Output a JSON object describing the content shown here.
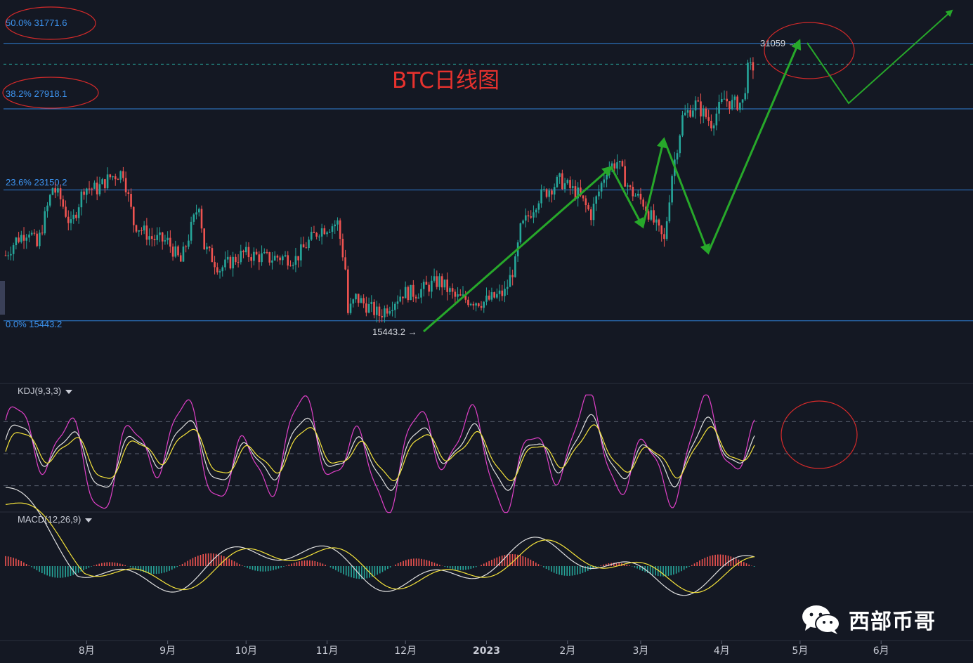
{
  "title": "BTC日线图",
  "watermark": "西部币哥",
  "indicators": {
    "kdj_label": "KDJ(9,3,3)",
    "macd_label": "MACD(12,26,9)"
  },
  "colors": {
    "background": "#141823",
    "up": "#26a69a",
    "down": "#ef5350",
    "fib_line": "#2f7fd6",
    "fib_text": "#3d94f0",
    "arrow": "#27a82a",
    "title": "#e8322e",
    "kdj_k": "#e0e0e0",
    "kdj_d": "#f5e33b",
    "kdj_j": "#e040c8",
    "macd_dif": "#e0e0e0",
    "macd_dea": "#f5e33b"
  },
  "chart_data": {
    "type": "candlestick",
    "title": "BTC日线图",
    "ylim": [
      12000,
      33500
    ],
    "fib_levels": [
      {
        "label": "50.0% 31771.6",
        "value": 31771.6
      },
      {
        "label": "38.2% 27918.1",
        "value": 27918.1
      },
      {
        "label": "23.6% 23150.2",
        "value": 23150.2
      },
      {
        "label": "0.0% 15443.2",
        "value": 15443.2
      }
    ],
    "current_price_line": 30550,
    "annotations": {
      "high_label": "31059",
      "low_label": "15443.2"
    },
    "x_ticks": [
      "8月",
      "9月",
      "10月",
      "11月",
      "12月",
      "2023",
      "2月",
      "3月",
      "4月",
      "5月",
      "6月"
    ],
    "close_path": [
      {
        "x": "2022-07-01",
        "y": 19300
      },
      {
        "x": "2022-07-05",
        "y": 20200
      },
      {
        "x": "2022-07-10",
        "y": 20800
      },
      {
        "x": "2022-07-13",
        "y": 19800
      },
      {
        "x": "2022-07-19",
        "y": 23300
      },
      {
        "x": "2022-07-22",
        "y": 22600
      },
      {
        "x": "2022-07-26",
        "y": 21000
      },
      {
        "x": "2022-07-31",
        "y": 23300
      },
      {
        "x": "2022-08-05",
        "y": 23200
      },
      {
        "x": "2022-08-10",
        "y": 23900
      },
      {
        "x": "2022-08-15",
        "y": 24200
      },
      {
        "x": "2022-08-19",
        "y": 21200
      },
      {
        "x": "2022-08-26",
        "y": 20300
      },
      {
        "x": "2022-09-01",
        "y": 20100
      },
      {
        "x": "2022-09-06",
        "y": 18900
      },
      {
        "x": "2022-09-13",
        "y": 22400
      },
      {
        "x": "2022-09-15",
        "y": 19800
      },
      {
        "x": "2022-09-21",
        "y": 18500
      },
      {
        "x": "2022-09-30",
        "y": 19400
      },
      {
        "x": "2022-10-10",
        "y": 19100
      },
      {
        "x": "2022-10-13",
        "y": 19200
      },
      {
        "x": "2022-10-20",
        "y": 19100
      },
      {
        "x": "2022-10-25",
        "y": 20100
      },
      {
        "x": "2022-10-29",
        "y": 20800
      },
      {
        "x": "2022-11-05",
        "y": 21200
      },
      {
        "x": "2022-11-08",
        "y": 18500
      },
      {
        "x": "2022-11-09",
        "y": 15900
      },
      {
        "x": "2022-11-12",
        "y": 16800
      },
      {
        "x": "2022-11-21",
        "y": 15800
      },
      {
        "x": "2022-11-30",
        "y": 17100
      },
      {
        "x": "2022-12-05",
        "y": 17100
      },
      {
        "x": "2022-12-14",
        "y": 17800
      },
      {
        "x": "2022-12-20",
        "y": 16800
      },
      {
        "x": "2022-12-31",
        "y": 16550
      },
      {
        "x": "2023-01-08",
        "y": 17100
      },
      {
        "x": "2023-01-12",
        "y": 18800
      },
      {
        "x": "2023-01-14",
        "y": 20800
      },
      {
        "x": "2023-01-21",
        "y": 22700
      },
      {
        "x": "2023-01-29",
        "y": 23700
      },
      {
        "x": "2023-02-05",
        "y": 22900
      },
      {
        "x": "2023-02-10",
        "y": 21700
      },
      {
        "x": "2023-02-16",
        "y": 24400
      },
      {
        "x": "2023-02-20",
        "y": 24800
      },
      {
        "x": "2023-02-25",
        "y": 23100
      },
      {
        "x": "2023-03-02",
        "y": 22400
      },
      {
        "x": "2023-03-10",
        "y": 20100
      },
      {
        "x": "2023-03-13",
        "y": 24100
      },
      {
        "x": "2023-03-17",
        "y": 27400
      },
      {
        "x": "2023-03-22",
        "y": 28200
      },
      {
        "x": "2023-03-28",
        "y": 27100
      },
      {
        "x": "2023-04-02",
        "y": 28500
      },
      {
        "x": "2023-04-05",
        "y": 28200
      },
      {
        "x": "2023-04-09",
        "y": 28300
      },
      {
        "x": "2023-04-11",
        "y": 30200
      },
      {
        "x": "2023-04-14",
        "y": 30500
      }
    ],
    "kdj": {
      "ylim": [
        0,
        100
      ],
      "guides": [
        80,
        50,
        20
      ]
    },
    "macd": {
      "histogram_colors": [
        "#ef5350",
        "#26a69a"
      ]
    }
  }
}
